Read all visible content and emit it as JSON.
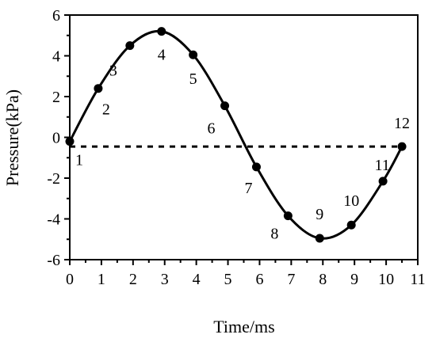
{
  "chart_data": {
    "type": "line",
    "title": "",
    "xlabel": "Time/ms",
    "ylabel": "Pressure(kPa)",
    "xlim": [
      0,
      11
    ],
    "ylim": [
      -6,
      6
    ],
    "xticks": [
      0,
      1,
      2,
      3,
      4,
      5,
      6,
      7,
      8,
      9,
      10,
      11
    ],
    "yticks": [
      -6,
      -4,
      -2,
      0,
      2,
      4,
      6
    ],
    "grid": false,
    "legend": "none",
    "series": [
      {
        "style": "smooth curve with markers",
        "color": "#000000",
        "points": [
          {
            "label": "1",
            "x": 0.0,
            "y": -0.2
          },
          {
            "label": "2",
            "x": 0.9,
            "y": 2.4
          },
          {
            "label": "3",
            "x": 1.9,
            "y": 4.5
          },
          {
            "label": "4",
            "x": 2.9,
            "y": 5.2
          },
          {
            "label": "5",
            "x": 3.9,
            "y": 4.05
          },
          {
            "label": "6",
            "x": 4.9,
            "y": 1.55
          },
          {
            "label": "7",
            "x": 5.9,
            "y": -1.45
          },
          {
            "label": "8",
            "x": 6.9,
            "y": -3.85
          },
          {
            "label": "9",
            "x": 7.9,
            "y": -4.95
          },
          {
            "label": "10",
            "x": 8.9,
            "y": -4.3
          },
          {
            "label": "11",
            "x": 9.9,
            "y": -2.15
          },
          {
            "label": "12",
            "x": 10.5,
            "y": -0.45
          }
        ]
      }
    ],
    "reference_line": {
      "style": "dashed",
      "color": "#000000",
      "x_range": [
        0,
        10.5
      ],
      "y": -0.45
    }
  }
}
